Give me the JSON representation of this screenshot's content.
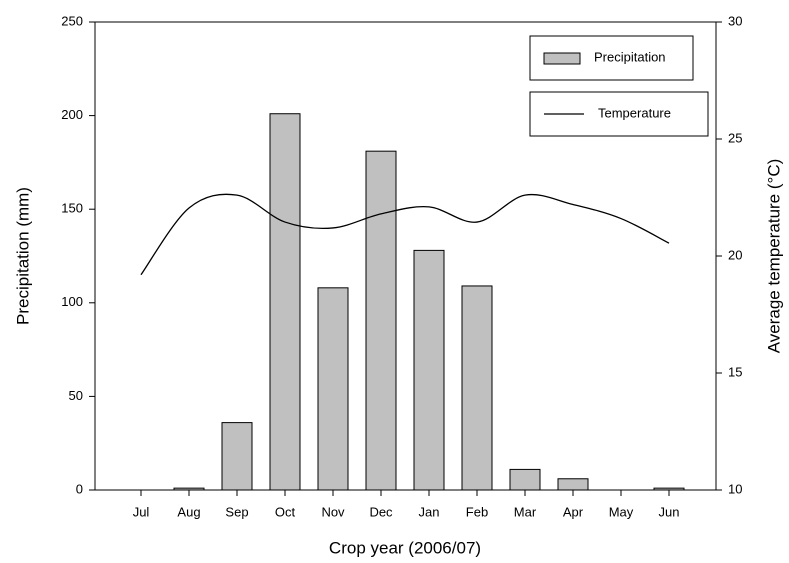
{
  "chart_data": {
    "type": "bar-line",
    "x_label": "Crop year (2006/07)",
    "y_label": "Precipitation (mm)",
    "y2_label": "Average temperature (°C)",
    "categories": [
      "Jul",
      "Aug",
      "Sep",
      "Oct",
      "Nov",
      "Dec",
      "Jan",
      "Feb",
      "Mar",
      "Apr",
      "May",
      "Jun"
    ],
    "series": [
      {
        "name": "Precipitation",
        "type": "bar",
        "color": "#c0c0c0",
        "values": [
          0,
          1,
          36,
          201,
          108,
          181,
          128,
          109,
          11,
          6,
          0,
          1
        ]
      },
      {
        "name": "Temperature",
        "type": "line",
        "axis": "y2",
        "color": "#000000",
        "values": [
          19.2,
          22.05,
          22.6,
          21.45,
          21.2,
          21.8,
          22.1,
          21.45,
          22.6,
          22.2,
          21.6,
          20.55
        ]
      }
    ],
    "ylim": [
      0,
      250
    ],
    "yticks": [
      0,
      50,
      100,
      150,
      200,
      250
    ],
    "y2lim": [
      10,
      30
    ],
    "y2ticks": [
      10,
      15,
      20,
      25,
      30
    ],
    "legend": "upper right"
  }
}
